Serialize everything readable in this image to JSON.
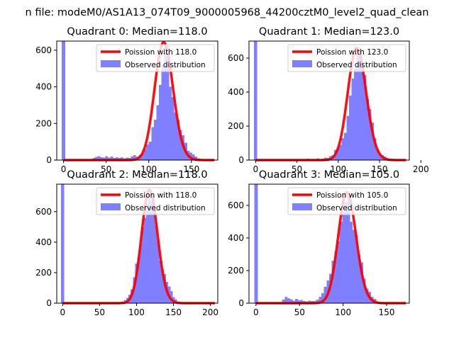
{
  "suptitle": "n file: modeM0/AS1A13_074T09_9000005968_44200cztM0_level2_quad_clean",
  "colors": {
    "curve": "#ff0000",
    "bars": "#7f7fff",
    "axes": "#000000",
    "background": "#ffffff"
  },
  "chart_data": [
    {
      "type": "bar",
      "title": "Quadrant 0: Median=118.0",
      "legend": [
        "Poission with 118.0",
        "Observed distribution"
      ],
      "legend_position": "top-right",
      "grid": false,
      "xlim": [
        -8,
        181
      ],
      "ylim": [
        0,
        650
      ],
      "xticks": [
        0,
        50,
        100,
        150
      ],
      "yticks": [
        0,
        200,
        400,
        600
      ],
      "bins": [
        [
          -2,
          2,
          650
        ],
        [
          34,
          37,
          12
        ],
        [
          37,
          40,
          18
        ],
        [
          40,
          43,
          22
        ],
        [
          43,
          46,
          16
        ],
        [
          46,
          49,
          13
        ],
        [
          49,
          52,
          22
        ],
        [
          52,
          55,
          14
        ],
        [
          55,
          58,
          20
        ],
        [
          58,
          61,
          12
        ],
        [
          61,
          64,
          15
        ],
        [
          64,
          67,
          12
        ],
        [
          67,
          70,
          16
        ],
        [
          70,
          73,
          10
        ],
        [
          73,
          76,
          14
        ],
        [
          76,
          79,
          12
        ],
        [
          79,
          82,
          22
        ],
        [
          82,
          85,
          28
        ],
        [
          85,
          88,
          20
        ],
        [
          88,
          91,
          28
        ],
        [
          91,
          94,
          35
        ],
        [
          94,
          97,
          60
        ],
        [
          97,
          100,
          85
        ],
        [
          100,
          103,
          100
        ],
        [
          103,
          106,
          180
        ],
        [
          106,
          109,
          220
        ],
        [
          109,
          112,
          300
        ],
        [
          112,
          115,
          410
        ],
        [
          115,
          118,
          520
        ],
        [
          118,
          121,
          585
        ],
        [
          121,
          124,
          625
        ],
        [
          124,
          127,
          400
        ],
        [
          127,
          130,
          345
        ],
        [
          130,
          133,
          260
        ],
        [
          133,
          136,
          220
        ],
        [
          136,
          139,
          165
        ],
        [
          139,
          142,
          135
        ],
        [
          142,
          145,
          95
        ],
        [
          145,
          148,
          50
        ],
        [
          148,
          151,
          40
        ],
        [
          151,
          154,
          30
        ],
        [
          154,
          157,
          20
        ],
        [
          157,
          160,
          10
        ]
      ],
      "poisson_mean": 118.0
    },
    {
      "type": "bar",
      "title": "Quadrant 1: Median=123.0",
      "legend": [
        "Poission with 123.0",
        "Observed distribution"
      ],
      "legend_position": "top-right",
      "grid": false,
      "xlim": [
        -8,
        186
      ],
      "ylim": [
        0,
        700
      ],
      "xticks": [
        0,
        50,
        100,
        150,
        200
      ],
      "yticks": [
        0,
        200,
        400,
        600
      ],
      "bins": [
        [
          -2,
          2,
          700
        ],
        [
          50,
          53,
          5
        ],
        [
          56,
          59,
          6
        ],
        [
          62,
          65,
          8
        ],
        [
          68,
          71,
          6
        ],
        [
          74,
          77,
          10
        ],
        [
          80,
          83,
          8
        ],
        [
          83,
          86,
          14
        ],
        [
          86,
          89,
          12
        ],
        [
          89,
          92,
          22
        ],
        [
          92,
          95,
          30
        ],
        [
          95,
          98,
          60
        ],
        [
          98,
          101,
          70
        ],
        [
          101,
          104,
          90
        ],
        [
          104,
          107,
          130
        ],
        [
          107,
          110,
          160
        ],
        [
          110,
          113,
          260
        ],
        [
          113,
          116,
          380
        ],
        [
          116,
          119,
          480
        ],
        [
          119,
          122,
          540
        ],
        [
          122,
          125,
          630
        ],
        [
          125,
          128,
          640
        ],
        [
          128,
          131,
          520
        ],
        [
          131,
          134,
          500
        ],
        [
          134,
          137,
          360
        ],
        [
          137,
          140,
          300
        ],
        [
          140,
          143,
          220
        ],
        [
          143,
          146,
          130
        ],
        [
          146,
          149,
          60
        ],
        [
          149,
          152,
          40
        ],
        [
          152,
          155,
          30
        ],
        [
          155,
          158,
          20
        ],
        [
          158,
          161,
          10
        ]
      ],
      "poisson_mean": 123.0
    },
    {
      "type": "bar",
      "title": "Quadrant 2: Median=118.0",
      "legend": [
        "Poission with 118.0",
        "Observed distribution"
      ],
      "legend_position": "top-right",
      "grid": false,
      "xlim": [
        -8,
        210
      ],
      "ylim": [
        0,
        780
      ],
      "xticks": [
        0,
        50,
        100,
        150,
        200
      ],
      "yticks": [
        0,
        200,
        400,
        600
      ],
      "bins": [
        [
          -2,
          2,
          780
        ],
        [
          80,
          83,
          12
        ],
        [
          83,
          86,
          20
        ],
        [
          86,
          89,
          35
        ],
        [
          89,
          92,
          55
        ],
        [
          92,
          95,
          90
        ],
        [
          95,
          98,
          170
        ],
        [
          98,
          101,
          260
        ],
        [
          101,
          104,
          300
        ],
        [
          104,
          107,
          380
        ],
        [
          107,
          110,
          500
        ],
        [
          110,
          113,
          560
        ],
        [
          113,
          116,
          650
        ],
        [
          116,
          119,
          720
        ],
        [
          119,
          122,
          670
        ],
        [
          122,
          125,
          690
        ],
        [
          125,
          128,
          510
        ],
        [
          128,
          131,
          400
        ],
        [
          131,
          134,
          280
        ],
        [
          134,
          137,
          220
        ],
        [
          137,
          140,
          190
        ],
        [
          140,
          143,
          140
        ],
        [
          143,
          146,
          110
        ],
        [
          146,
          149,
          80
        ],
        [
          149,
          152,
          40
        ],
        [
          152,
          155,
          25
        ],
        [
          155,
          158,
          12
        ],
        [
          158,
          161,
          6
        ]
      ],
      "poisson_mean": 118.0
    },
    {
      "type": "bar",
      "title": "Quadrant 3: Median=105.0",
      "legend": [
        "Poission with 105.0",
        "Observed distribution"
      ],
      "legend_position": "top-right",
      "grid": false,
      "xlim": [
        -8,
        176
      ],
      "ylim": [
        0,
        730
      ],
      "xticks": [
        0,
        50,
        100,
        150
      ],
      "yticks": [
        0,
        200,
        400,
        600
      ],
      "bins": [
        [
          -2,
          2,
          730
        ],
        [
          30,
          33,
          22
        ],
        [
          33,
          36,
          40
        ],
        [
          36,
          39,
          30
        ],
        [
          39,
          42,
          24
        ],
        [
          42,
          45,
          16
        ],
        [
          45,
          48,
          26
        ],
        [
          48,
          51,
          18
        ],
        [
          51,
          54,
          20
        ],
        [
          54,
          57,
          14
        ],
        [
          57,
          60,
          10
        ],
        [
          60,
          63,
          16
        ],
        [
          63,
          66,
          14
        ],
        [
          66,
          69,
          12
        ],
        [
          69,
          72,
          22
        ],
        [
          72,
          75,
          40
        ],
        [
          75,
          78,
          60
        ],
        [
          78,
          81,
          100
        ],
        [
          81,
          84,
          140
        ],
        [
          84,
          87,
          180
        ],
        [
          87,
          90,
          260
        ],
        [
          90,
          93,
          320
        ],
        [
          93,
          96,
          380
        ],
        [
          96,
          99,
          500
        ],
        [
          99,
          102,
          560
        ],
        [
          102,
          105,
          620
        ],
        [
          105,
          108,
          660
        ],
        [
          108,
          111,
          500
        ],
        [
          111,
          114,
          450
        ],
        [
          114,
          117,
          420
        ],
        [
          117,
          120,
          300
        ],
        [
          120,
          123,
          250
        ],
        [
          123,
          126,
          150
        ],
        [
          126,
          129,
          90
        ],
        [
          129,
          132,
          70
        ],
        [
          132,
          135,
          40
        ],
        [
          135,
          138,
          25
        ],
        [
          138,
          141,
          10
        ]
      ],
      "poisson_mean": 105.0
    }
  ]
}
